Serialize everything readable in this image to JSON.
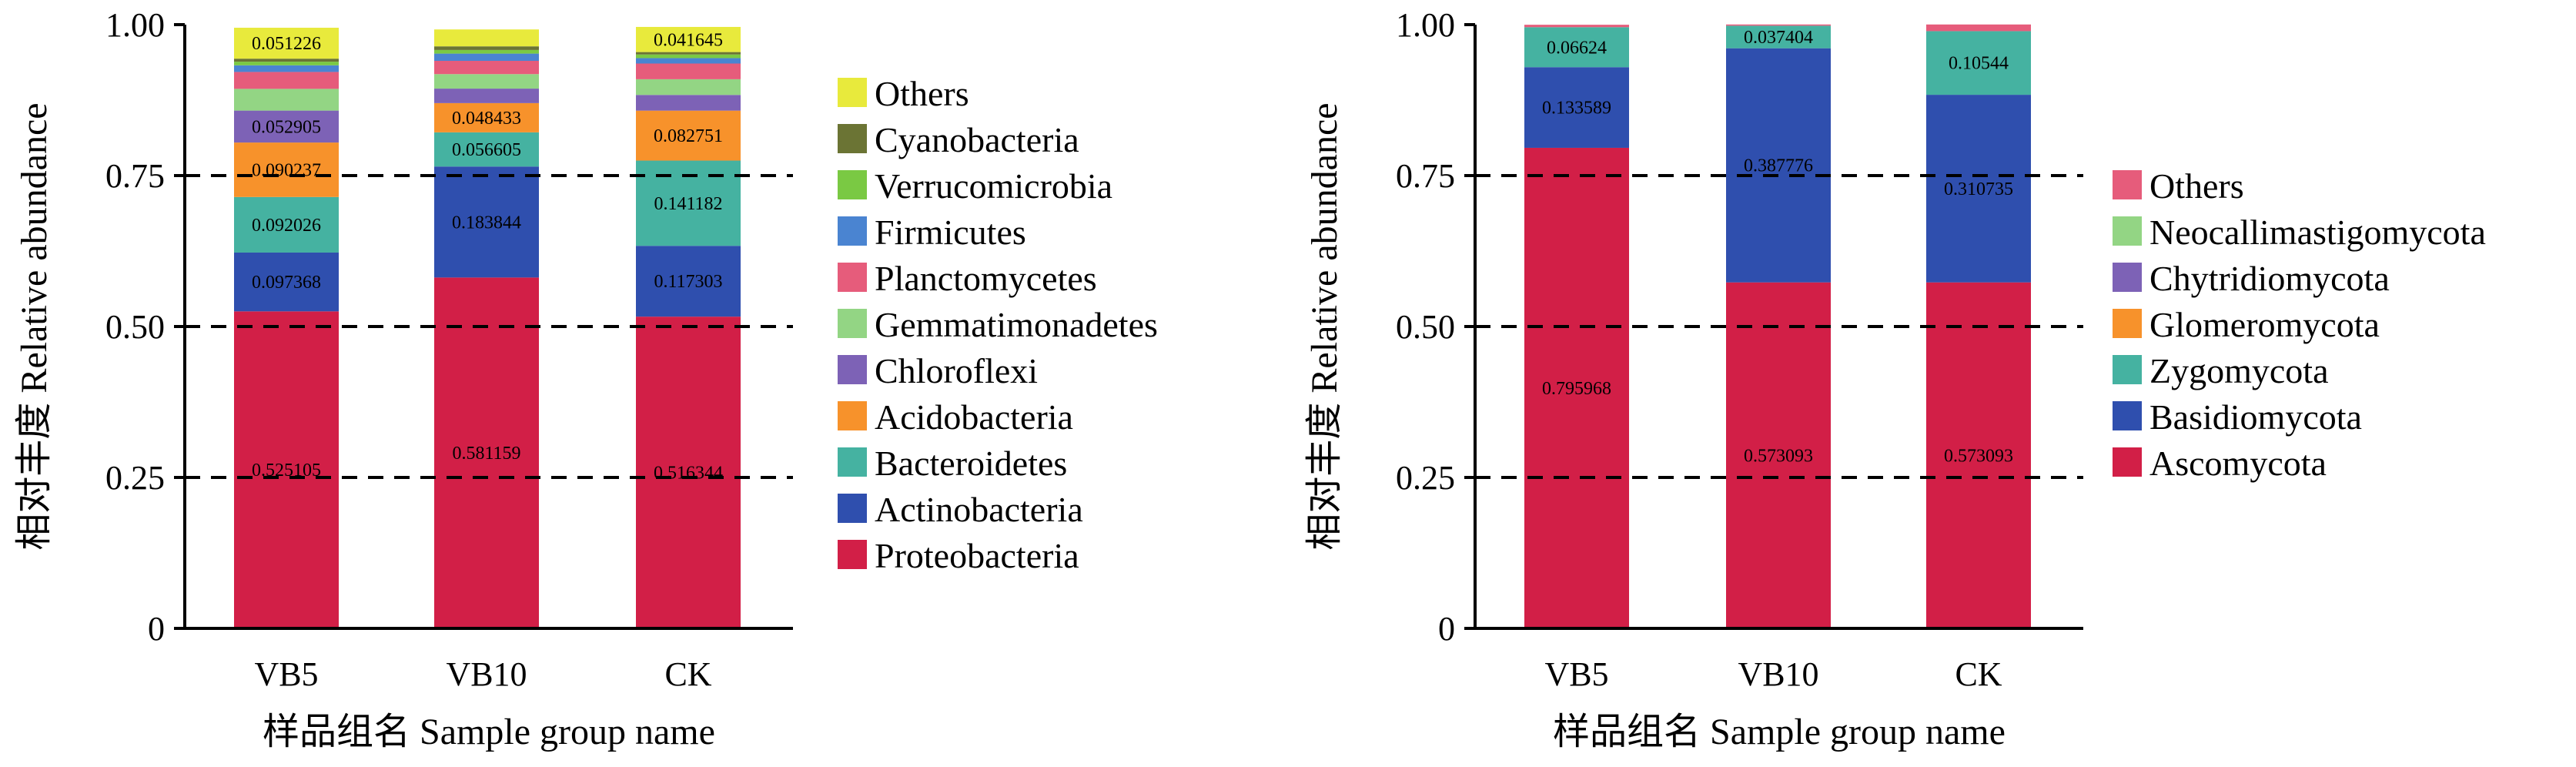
{
  "chart_data": [
    {
      "type": "bar",
      "stacked": true,
      "xlabel": "样品组名 Sample group name",
      "ylabel": "相对丰度 Relative abundance",
      "ylim": [
        0,
        1
      ],
      "yticks": [
        "0",
        "0.25",
        "0.50",
        "0.75",
        "1.00"
      ],
      "categories": [
        "VB5",
        "VB10",
        "CK"
      ],
      "grid": "dashed horizontal at 0.25, 0.50, 0.75",
      "legend_position": "right",
      "series": [
        {
          "name": "Proteobacteria",
          "color": "#d21f47",
          "values": [
            0.525105,
            0.581159,
            0.516344
          ],
          "labels": [
            "0.525105",
            "0.581159",
            "0.516344"
          ]
        },
        {
          "name": "Actinobacteria",
          "color": "#2f4fae",
          "values": [
            0.097368,
            0.183844,
            0.117303
          ],
          "labels": [
            "0.097368",
            "0.183844",
            "0.117303"
          ]
        },
        {
          "name": "Bacteroidetes",
          "color": "#45b2a1",
          "values": [
            0.092026,
            0.056605,
            0.141182
          ],
          "labels": [
            "0.092026",
            "0.056605",
            "0.141182"
          ]
        },
        {
          "name": "Acidobacteria",
          "color": "#f7922b",
          "values": [
            0.090237,
            0.048433,
            0.082751
          ],
          "labels": [
            "0.090237",
            "0.048433",
            "0.082751"
          ]
        },
        {
          "name": "Chloroflexi",
          "color": "#7d62b6",
          "values": [
            0.052905,
            0.024,
            0.026
          ],
          "labels": [
            "0.052905",
            "",
            ""
          ]
        },
        {
          "name": "Gemmatimonadetes",
          "color": "#93d584",
          "values": [
            0.036,
            0.024,
            0.026
          ],
          "labels": [
            "",
            "",
            ""
          ]
        },
        {
          "name": "Planctomycetes",
          "color": "#e65c7b",
          "values": [
            0.028,
            0.022,
            0.026
          ],
          "labels": [
            "",
            "",
            ""
          ]
        },
        {
          "name": "Firmicutes",
          "color": "#4a84d1",
          "values": [
            0.011,
            0.012,
            0.009
          ],
          "labels": [
            "",
            "",
            ""
          ]
        },
        {
          "name": "Verrucomicrobia",
          "color": "#7ac943",
          "values": [
            0.006,
            0.006,
            0.006
          ],
          "labels": [
            "",
            "",
            ""
          ]
        },
        {
          "name": "Cyanobacteria",
          "color": "#6b7434",
          "values": [
            0.005,
            0.006,
            0.004
          ],
          "labels": [
            "",
            "",
            ""
          ]
        },
        {
          "name": "Others",
          "color": "#e8ea3c",
          "values": [
            0.051226,
            0.028,
            0.041645
          ],
          "labels": [
            "0.051226",
            "",
            "0.041645"
          ]
        }
      ]
    },
    {
      "type": "bar",
      "stacked": true,
      "xlabel": "样品组名 Sample group name",
      "ylabel": "相对丰度 Relative abundance",
      "ylim": [
        0,
        1
      ],
      "yticks": [
        "0",
        "0.25",
        "0.50",
        "0.75",
        "1.00"
      ],
      "categories": [
        "VB5",
        "VB10",
        "CK"
      ],
      "grid": "dashed horizontal at 0.25, 0.50, 0.75",
      "legend_position": "right",
      "series": [
        {
          "name": "Ascomycota",
          "color": "#d21f47",
          "values": [
            0.795968,
            0.573093,
            0.573093
          ],
          "labels": [
            "0.795968",
            "0.573093",
            "0.573093"
          ]
        },
        {
          "name": "Basidiomycota",
          "color": "#2f4fae",
          "values": [
            0.133589,
            0.387776,
            0.310735
          ],
          "labels": [
            "0.133589",
            "0.387776",
            "0.310735"
          ]
        },
        {
          "name": "Zygomycota",
          "color": "#45b2a1",
          "values": [
            0.06624,
            0.037404,
            0.10544
          ],
          "labels": [
            "0.06624",
            "0.037404",
            "0.10544"
          ]
        },
        {
          "name": "Glomeromycota",
          "color": "#f7922b",
          "values": [
            0,
            0,
            0
          ],
          "labels": [
            "",
            "",
            ""
          ]
        },
        {
          "name": "Chytridiomycota",
          "color": "#7d62b6",
          "values": [
            0,
            0,
            0
          ],
          "labels": [
            "",
            "",
            ""
          ]
        },
        {
          "name": "Neocallimastigomycota",
          "color": "#93d584",
          "values": [
            0,
            0,
            0
          ],
          "labels": [
            "",
            "",
            ""
          ]
        },
        {
          "name": "Others",
          "color": "#e65c7b",
          "values": [
            0.004,
            0.002,
            0.011
          ],
          "labels": [
            "",
            "",
            ""
          ]
        }
      ]
    }
  ]
}
